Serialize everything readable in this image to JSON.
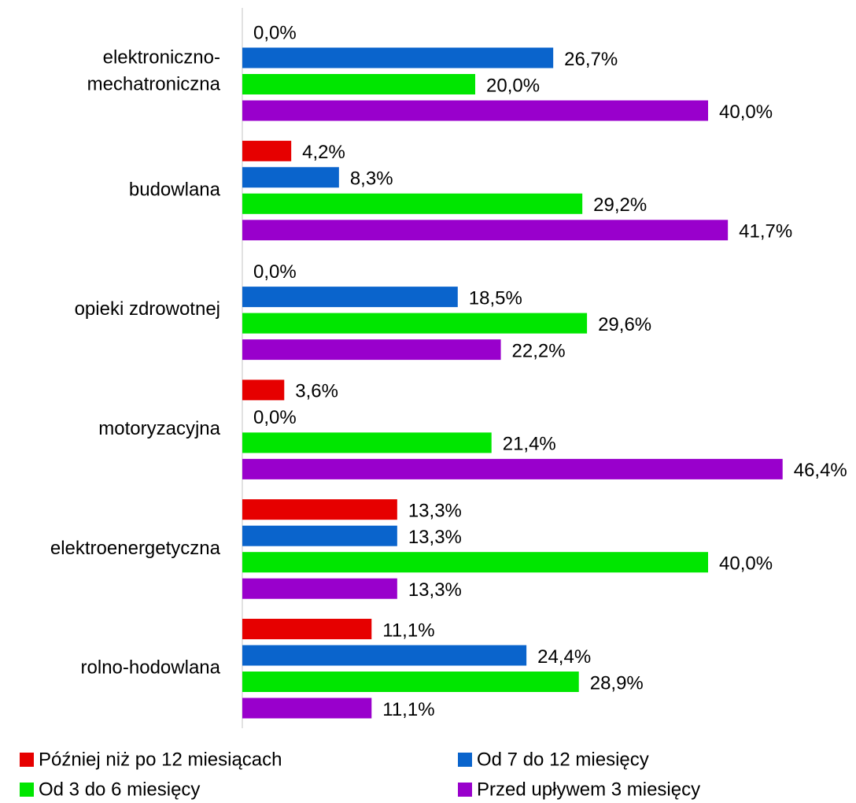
{
  "chart_data": {
    "type": "bar",
    "orientation": "horizontal",
    "categories": [
      "elektroniczno-mechatroniczna",
      "budowlana",
      "opieki zdrowotnej",
      "motoryzacyjna",
      "elektroenergetyczna",
      "rolno-hodowlana"
    ],
    "series": [
      {
        "name": "Później niż po 12 miesiącach",
        "color": "#e60000",
        "values": [
          0.0,
          4.2,
          0.0,
          3.6,
          13.3,
          11.1
        ],
        "value_labels": [
          "0,0%",
          "4,2%",
          "0,0%",
          "3,6%",
          "13,3%",
          "11,1%"
        ]
      },
      {
        "name": "Od 7 do 12 miesięcy",
        "color": "#0a64cc",
        "values": [
          26.7,
          8.3,
          18.5,
          0.0,
          13.3,
          24.4
        ],
        "value_labels": [
          "26,7%",
          "8,3%",
          "18,5%",
          "0,0%",
          "13,3%",
          "24,4%"
        ]
      },
      {
        "name": "Od 3 do 6 miesięcy",
        "color": "#00e600",
        "values": [
          20.0,
          29.2,
          29.6,
          21.4,
          40.0,
          28.9
        ],
        "value_labels": [
          "20,0%",
          "29,2%",
          "29,6%",
          "21,4%",
          "40,0%",
          "28,9%"
        ]
      },
      {
        "name": "Przed upływem 3 miesięcy",
        "color": "#9900cc",
        "values": [
          40.0,
          41.7,
          22.2,
          46.4,
          13.3,
          11.1
        ],
        "value_labels": [
          "40,0%",
          "41,7%",
          "22,2%",
          "46,4%",
          "13,3%",
          "11,1%"
        ]
      }
    ],
    "legend": "bottom"
  }
}
